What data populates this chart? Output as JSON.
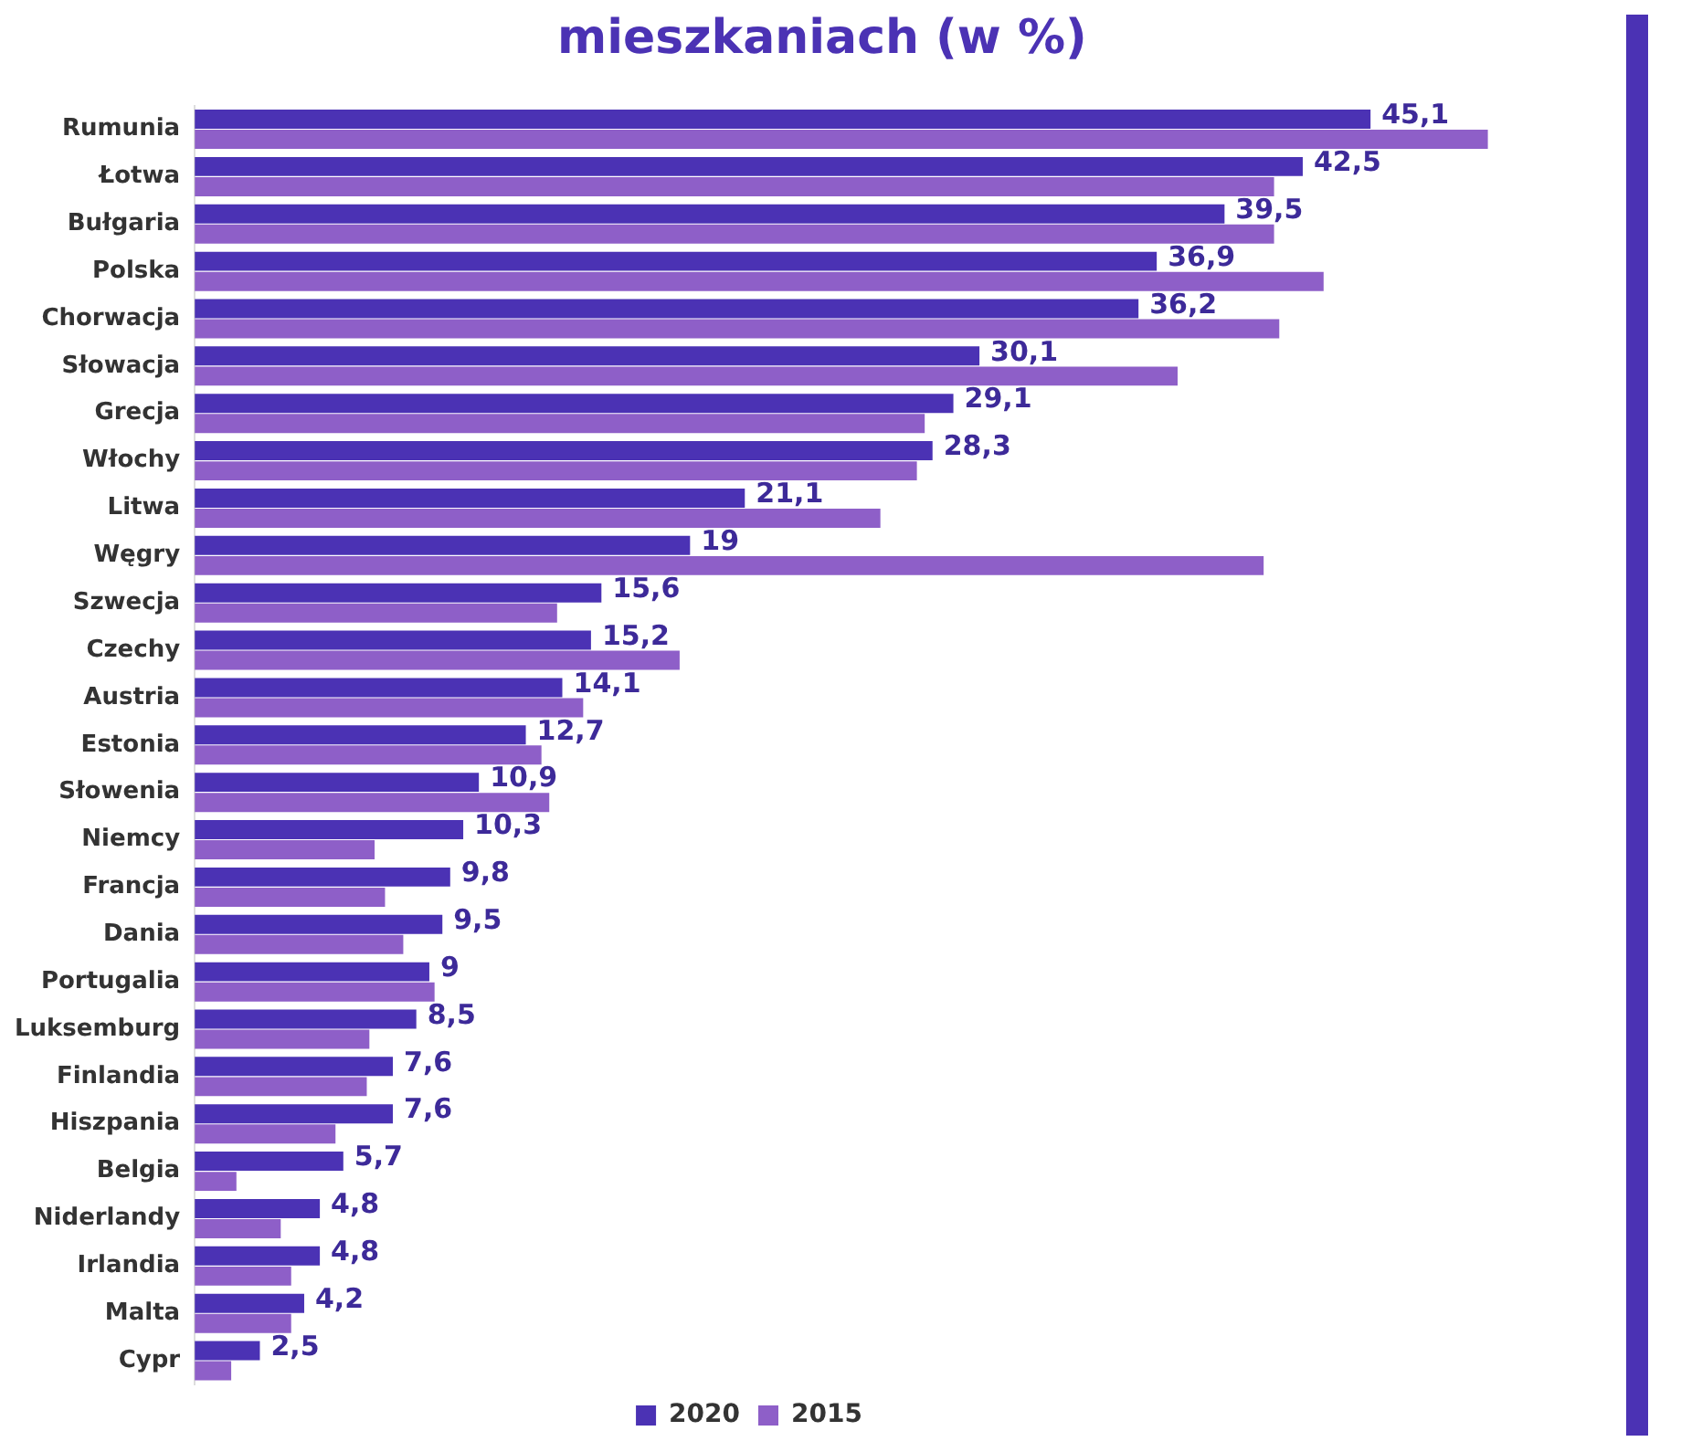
{
  "chart_data": {
    "type": "bar",
    "orientation": "horizontal",
    "title": "mieszkaniach (w %)",
    "categories": [
      "Rumunia",
      "Łotwa",
      "Bułgaria",
      "Polska",
      "Chorwacja",
      "Słowacja",
      "Grecja",
      "Włochy",
      "Litwa",
      "Węgry",
      "Szwecja",
      "Czechy",
      "Austria",
      "Estonia",
      "Słowenia",
      "Niemcy",
      "Francja",
      "Dania",
      "Portugalia",
      "Luksemburg",
      "Finlandia",
      "Hiszpania",
      "Belgia",
      "Niderlandy",
      "Irlandia",
      "Malta",
      "Cypr"
    ],
    "series": [
      {
        "name": "2020",
        "color": "#4b32b4",
        "values": [
          45.1,
          42.5,
          39.5,
          36.9,
          36.2,
          30.1,
          29.1,
          28.3,
          21.1,
          19,
          15.6,
          15.2,
          14.1,
          12.7,
          10.9,
          10.3,
          9.8,
          9.5,
          9,
          8.5,
          7.6,
          7.6,
          5.7,
          4.8,
          4.8,
          4.2,
          2.5
        ],
        "value_labels": [
          "45,1",
          "42,5",
          "39,5",
          "36,9",
          "36,2",
          "30,1",
          "29,1",
          "28,3",
          "21,1",
          "19",
          "15,6",
          "15,2",
          "14,1",
          "12,7",
          "10,9",
          "10,3",
          "9,8",
          "9,5",
          "9",
          "8,5",
          "7,6",
          "7,6",
          "5,7",
          "4,8",
          "4,8",
          "4,2",
          "2,5"
        ]
      },
      {
        "name": "2015",
        "color": "#8e5fc8",
        "values": [
          49.6,
          41.4,
          41.4,
          43.3,
          41.6,
          37.7,
          28.0,
          27.7,
          26.3,
          41.0,
          13.9,
          18.6,
          14.9,
          13.3,
          13.6,
          6.9,
          7.3,
          8.0,
          9.2,
          6.7,
          6.6,
          5.4,
          1.6,
          3.3,
          3.7,
          3.7,
          1.4
        ]
      }
    ],
    "tick_labels": "y",
    "grid": false,
    "legend": "bottom"
  }
}
